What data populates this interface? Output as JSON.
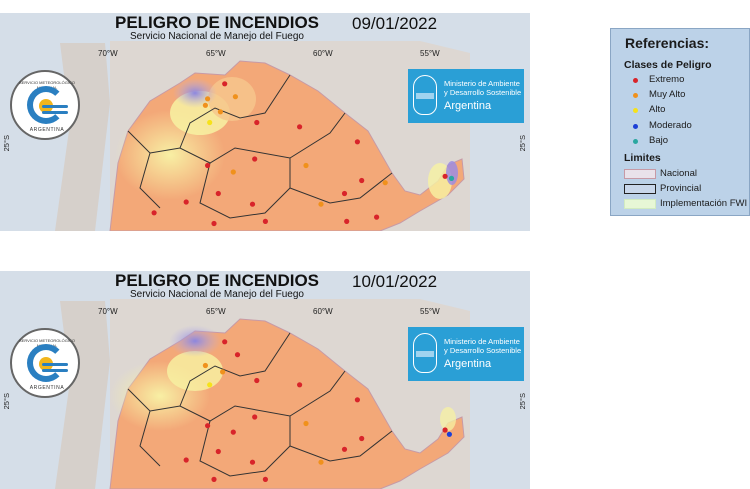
{
  "panels": [
    {
      "title": "PELIGRO DE INCENDIOS",
      "subtitle": "Servicio Nacional de Manejo del Fuego",
      "date": "09/01/2022",
      "lon_labels": [
        "70°W",
        "65°W",
        "60°W",
        "55°W"
      ],
      "lat_labels": [
        "25°S",
        "25°S"
      ],
      "smn_logo": {
        "top": "SERVICIO METEOROLÓGICO NACIONAL",
        "bottom": "ARGENTINA"
      },
      "ministry": {
        "line1": "Ministerio de Ambiente",
        "line2": "y Desarrollo Sostenible",
        "line3": "Argentina"
      },
      "stations": [
        {
          "lon": -64.5,
          "lat": -22.2,
          "class": "extremo"
        },
        {
          "lon": -64.0,
          "lat": -22.8,
          "class": "muy_alto"
        },
        {
          "lon": -65.3,
          "lat": -22.9,
          "class": "muy_alto"
        },
        {
          "lon": -65.4,
          "lat": -23.2,
          "class": "muy_alto"
        },
        {
          "lon": -64.7,
          "lat": -23.5,
          "class": "muy_alto"
        },
        {
          "lon": -65.2,
          "lat": -24.0,
          "class": "alto"
        },
        {
          "lon": -63.0,
          "lat": -24.0,
          "class": "extremo"
        },
        {
          "lon": -61.0,
          "lat": -24.2,
          "class": "extremo"
        },
        {
          "lon": -58.3,
          "lat": -24.9,
          "class": "extremo"
        },
        {
          "lon": -63.1,
          "lat": -25.7,
          "class": "extremo"
        },
        {
          "lon": -60.7,
          "lat": -26.0,
          "class": "muy_alto"
        },
        {
          "lon": -65.3,
          "lat": -26.0,
          "class": "extremo"
        },
        {
          "lon": -64.1,
          "lat": -26.3,
          "class": "muy_alto"
        },
        {
          "lon": -58.1,
          "lat": -26.7,
          "class": "extremo"
        },
        {
          "lon": -57.0,
          "lat": -26.8,
          "class": "muy_alto"
        },
        {
          "lon": -64.8,
          "lat": -27.3,
          "class": "extremo"
        },
        {
          "lon": -58.9,
          "lat": -27.3,
          "class": "extremo"
        },
        {
          "lon": -66.3,
          "lat": -27.7,
          "class": "extremo"
        },
        {
          "lon": -63.2,
          "lat": -27.8,
          "class": "extremo"
        },
        {
          "lon": -60.0,
          "lat": -27.8,
          "class": "muy_alto"
        },
        {
          "lon": -54.2,
          "lat": -26.5,
          "class": "extremo"
        },
        {
          "lon": -53.9,
          "lat": -26.6,
          "class": "bajo"
        },
        {
          "lon": -67.8,
          "lat": -28.2,
          "class": "extremo"
        },
        {
          "lon": -65.0,
          "lat": -28.7,
          "class": "extremo"
        },
        {
          "lon": -62.6,
          "lat": -28.6,
          "class": "extremo"
        },
        {
          "lon": -58.8,
          "lat": -28.6,
          "class": "extremo"
        },
        {
          "lon": -57.4,
          "lat": -28.4,
          "class": "extremo"
        }
      ]
    },
    {
      "title": "PELIGRO DE INCENDIOS",
      "subtitle": "Servicio Nacional de Manejo del Fuego",
      "date": "10/01/2022",
      "lon_labels": [
        "70°W",
        "65°W",
        "60°W",
        "55°W"
      ],
      "lat_labels": [
        "25°S",
        "25°S"
      ],
      "smn_logo": {
        "top": "SERVICIO METEOROLÓGICO NACIONAL",
        "bottom": "ARGENTINA"
      },
      "ministry": {
        "line1": "Ministerio de Ambiente",
        "line2": "y Desarrollo Sostenible",
        "line3": "Argentina"
      },
      "stations": [
        {
          "lon": -64.5,
          "lat": -22.2,
          "class": "extremo"
        },
        {
          "lon": -63.9,
          "lat": -22.8,
          "class": "extremo"
        },
        {
          "lon": -65.4,
          "lat": -23.3,
          "class": "muy_alto"
        },
        {
          "lon": -64.6,
          "lat": -23.6,
          "class": "muy_alto"
        },
        {
          "lon": -65.2,
          "lat": -24.2,
          "class": "alto"
        },
        {
          "lon": -63.0,
          "lat": -24.0,
          "class": "extremo"
        },
        {
          "lon": -61.0,
          "lat": -24.2,
          "class": "extremo"
        },
        {
          "lon": -58.3,
          "lat": -24.9,
          "class": "extremo"
        },
        {
          "lon": -63.1,
          "lat": -25.7,
          "class": "extremo"
        },
        {
          "lon": -60.7,
          "lat": -26.0,
          "class": "muy_alto"
        },
        {
          "lon": -65.3,
          "lat": -26.1,
          "class": "extremo"
        },
        {
          "lon": -64.1,
          "lat": -26.4,
          "class": "extremo"
        },
        {
          "lon": -58.1,
          "lat": -26.7,
          "class": "extremo"
        },
        {
          "lon": -54.2,
          "lat": -26.3,
          "class": "extremo"
        },
        {
          "lon": -54.0,
          "lat": -26.5,
          "class": "moderado"
        },
        {
          "lon": -64.8,
          "lat": -27.3,
          "class": "extremo"
        },
        {
          "lon": -58.9,
          "lat": -27.2,
          "class": "extremo"
        },
        {
          "lon": -66.3,
          "lat": -27.7,
          "class": "extremo"
        },
        {
          "lon": -63.2,
          "lat": -27.8,
          "class": "extremo"
        },
        {
          "lon": -60.0,
          "lat": -27.8,
          "class": "muy_alto"
        },
        {
          "lon": -65.0,
          "lat": -28.6,
          "class": "extremo"
        },
        {
          "lon": -62.6,
          "lat": -28.6,
          "class": "extremo"
        }
      ]
    }
  ],
  "legend": {
    "title": "Referencias:",
    "classes_title": "Clases de Peligro",
    "classes": [
      {
        "key": "extremo",
        "label": "Extremo",
        "color": "#d8242a"
      },
      {
        "key": "muy_alto",
        "label": "Muy Alto",
        "color": "#f0911c"
      },
      {
        "key": "alto",
        "label": "Alto",
        "color": "#f6e21a"
      },
      {
        "key": "moderado",
        "label": "Moderado",
        "color": "#1c3fd6"
      },
      {
        "key": "bajo",
        "label": "Bajo",
        "color": "#2aa7a0"
      }
    ],
    "limits_title": "Limites",
    "limits": [
      {
        "label": "Nacional",
        "fill": "#e9e2ea",
        "stroke": "#c79aa6"
      },
      {
        "label": "Provincial",
        "fill": "#c9d7ea",
        "stroke": "#222222"
      },
      {
        "label": "Implementación FWI",
        "fill": "#e7f7d6",
        "stroke": "#d2ebc1"
      }
    ]
  },
  "colors": {
    "extreme_area": "#f3a878",
    "very_high_area": "#f6c58c",
    "high_area": "#f7f2a2",
    "moderate_area": "#9c8ce0",
    "sea": "#d5dee8",
    "land_outside": "#dfd9d6"
  }
}
